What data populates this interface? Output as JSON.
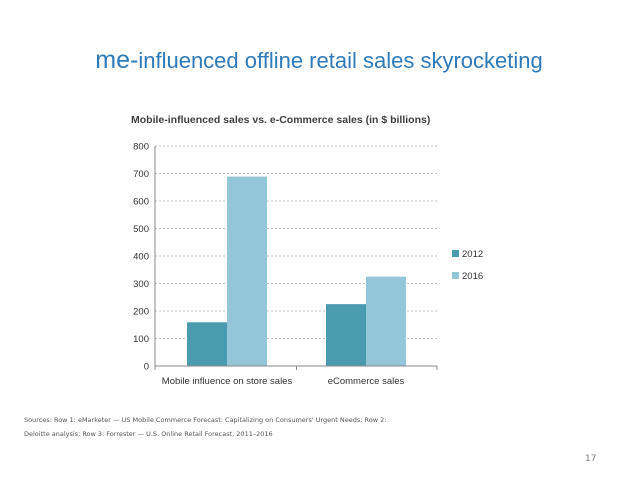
{
  "slide": {
    "title_prefix": "me-",
    "title_rest": "influenced offline retail sales skyrocketing",
    "sources": [
      "Sources: Row 1: eMarketer — US Mobile Commerce Forecast: Capitalizing on Consumers' Urgent Needs; Row 2:",
      "Deloitte analysis; Row 3: Forrester — U.S. Online Retail Forecast, 2011–2016"
    ],
    "page_number": "17"
  },
  "colors": {
    "series_2012": "#4a9bb0",
    "series_2016": "#93c6d8",
    "title": "#2f7ab8"
  },
  "chart_data": {
    "type": "bar",
    "title": "Mobile-influenced sales vs. e-Commerce sales (in $ billions)",
    "categories": [
      "Mobile influence on store sales",
      "eCommerce sales"
    ],
    "series": [
      {
        "name": "2012",
        "values": [
          159,
          225
        ]
      },
      {
        "name": "2016",
        "values": [
          689,
          325
        ]
      }
    ],
    "xlabel": "",
    "ylabel": "",
    "ylim": [
      0,
      800
    ],
    "yticks": [
      "0",
      "100",
      "200",
      "300",
      "400",
      "500",
      "600",
      "700",
      "800"
    ],
    "grid": true,
    "legend": "right"
  }
}
